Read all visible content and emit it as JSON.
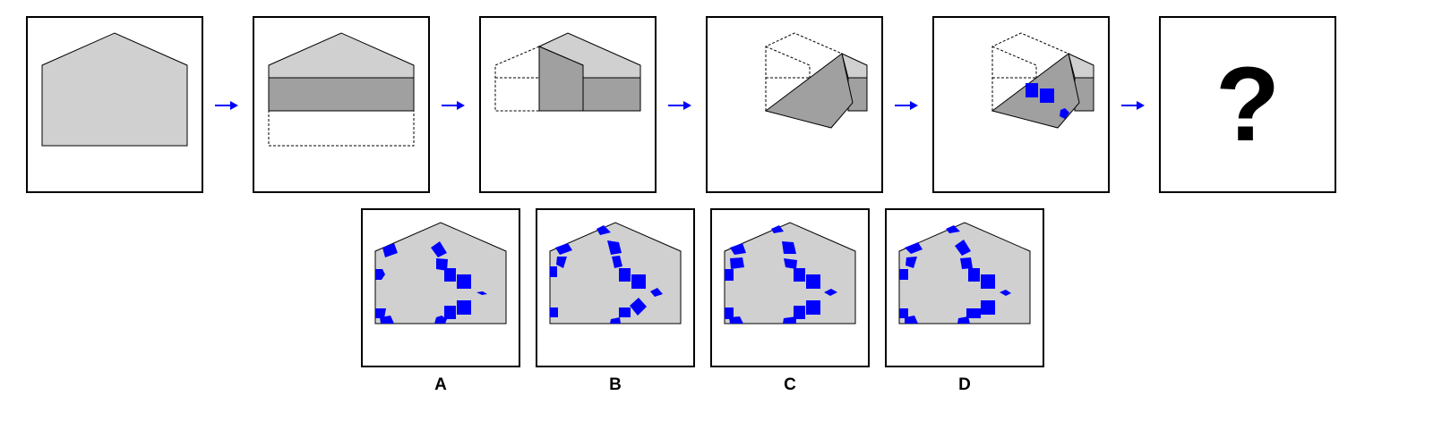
{
  "sequence": {
    "step_count": 6,
    "unknown_symbol": "?"
  },
  "options": [
    {
      "label": "A"
    },
    {
      "label": "B"
    },
    {
      "label": "C"
    },
    {
      "label": "D"
    }
  ],
  "colors": {
    "paper": "#d0d0d0",
    "folded_layer": "#a0a0a0",
    "hole": "#0000ff",
    "arrow": "#0000ff",
    "outline": "#000000"
  }
}
